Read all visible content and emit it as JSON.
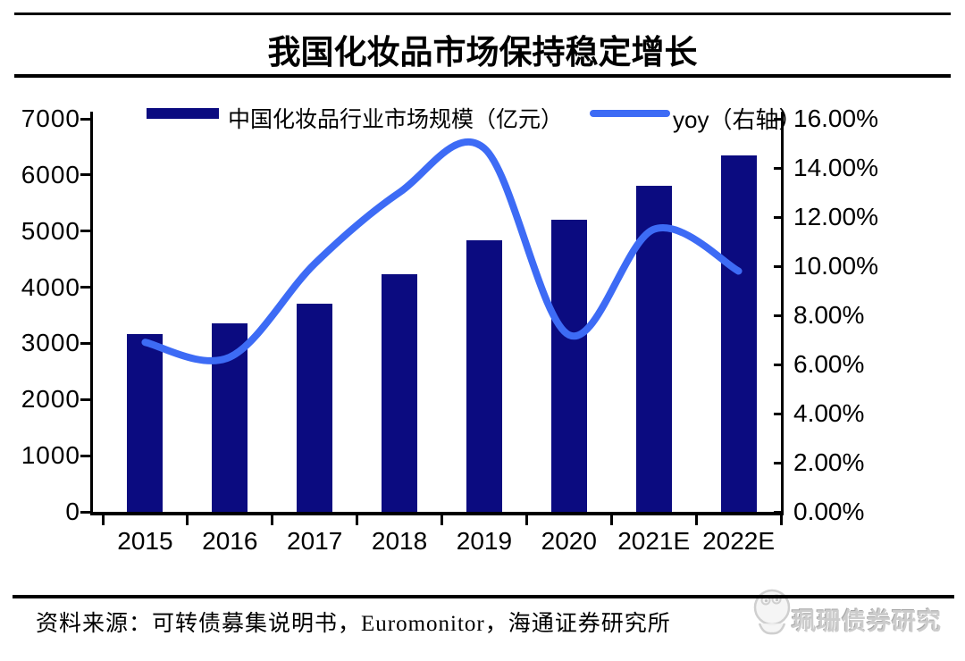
{
  "title": "我国化妆品市场保持稳定增长",
  "legend": {
    "bar_label": "中国化妆品行业市场规模（亿元）",
    "line_label": "yoy（右轴）"
  },
  "source": {
    "text": "资料来源：可转债募集说明书，Euromonitor，海通证券研究所"
  },
  "watermark": {
    "text": "珮珊债券研究",
    "logo": "mascot-face-icon"
  },
  "colors": {
    "bar": "#0b0b80",
    "line": "#3d6bf5",
    "axis": "#000000",
    "watermark_gray": "#cccccc"
  },
  "chart_data": {
    "type": "bar",
    "title": "我国化妆品市场保持稳定增长",
    "categories": [
      "2015",
      "2016",
      "2017",
      "2018",
      "2019",
      "2020",
      "2021E",
      "2022E"
    ],
    "series": [
      {
        "name": "中国化妆品行业市场规模（亿元）",
        "type": "bar",
        "axis": "left",
        "color": "#0b0b80",
        "values": [
          3170,
          3360,
          3710,
          4230,
          4830,
          5200,
          5800,
          6350
        ]
      },
      {
        "name": "yoy（右轴）",
        "type": "line",
        "axis": "right",
        "color": "#3d6bf5",
        "values_pct": [
          6.9,
          6.3,
          10.1,
          13.0,
          14.8,
          7.2,
          11.5,
          9.8
        ]
      }
    ],
    "left_axis": {
      "min": 0,
      "max": 7000,
      "step": 1000,
      "tick_labels": [
        "0",
        "1000",
        "2000",
        "3000",
        "4000",
        "5000",
        "6000",
        "7000"
      ]
    },
    "right_axis": {
      "min": 0,
      "max": 16,
      "step": 2,
      "tick_labels": [
        "0.00%",
        "2.00%",
        "4.00%",
        "6.00%",
        "8.00%",
        "10.00%",
        "12.00%",
        "14.00%",
        "16.00%"
      ]
    },
    "grid": false,
    "legend_position": "top"
  }
}
